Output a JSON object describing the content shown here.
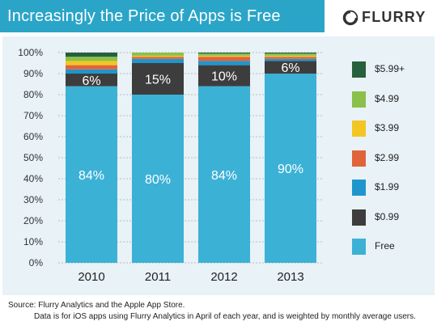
{
  "header": {
    "title": "Increasingly the Price of Apps is Free",
    "logo_text": "FLURRY",
    "bar_color": "#2aa5c8"
  },
  "chart_data": {
    "type": "bar",
    "stacked": true,
    "categories": [
      "2010",
      "2011",
      "2012",
      "2013"
    ],
    "ylim": [
      0,
      100
    ],
    "y_ticks": [
      "0%",
      "10%",
      "20%",
      "30%",
      "40%",
      "50%",
      "60%",
      "70%",
      "80%",
      "90%",
      "100%"
    ],
    "grid": true,
    "legend_placement": "right",
    "series": [
      {
        "name": "Free",
        "color": "#3cb1d6",
        "values": [
          84,
          80,
          84,
          90
        ]
      },
      {
        "name": "$0.99",
        "color": "#3d3d3d",
        "values": [
          6,
          15,
          10,
          6
        ]
      },
      {
        "name": "$1.99",
        "color": "#1f96cb",
        "values": [
          2,
          2,
          2,
          1
        ]
      },
      {
        "name": "$2.99",
        "color": "#e0643a",
        "values": [
          2,
          1,
          2,
          1
        ]
      },
      {
        "name": "$3.99",
        "color": "#f3c623",
        "values": [
          2,
          0.5,
          0.5,
          0.5
        ]
      },
      {
        "name": "$4.99",
        "color": "#8cc04a",
        "values": [
          2,
          1.5,
          1,
          1
        ]
      },
      {
        "name": "$5.99+",
        "color": "#27603c",
        "values": [
          2,
          0,
          0.5,
          0.5
        ]
      }
    ],
    "data_labels": [
      {
        "series": "Free",
        "values": [
          "84%",
          "80%",
          "84%",
          "90%"
        ]
      },
      {
        "series": "$0.99",
        "values": [
          "6%",
          "15%",
          "10%",
          "6%"
        ]
      }
    ],
    "legend_order": [
      "$5.99+",
      "$4.99",
      "$3.99",
      "$2.99",
      "$1.99",
      "$0.99",
      "Free"
    ]
  },
  "footer": {
    "source": "Source: Flurry Analytics and the Apple App Store.",
    "note": "Data is for iOS apps using Flurry Analytics in April of each year, and is weighted by monthly average users."
  }
}
